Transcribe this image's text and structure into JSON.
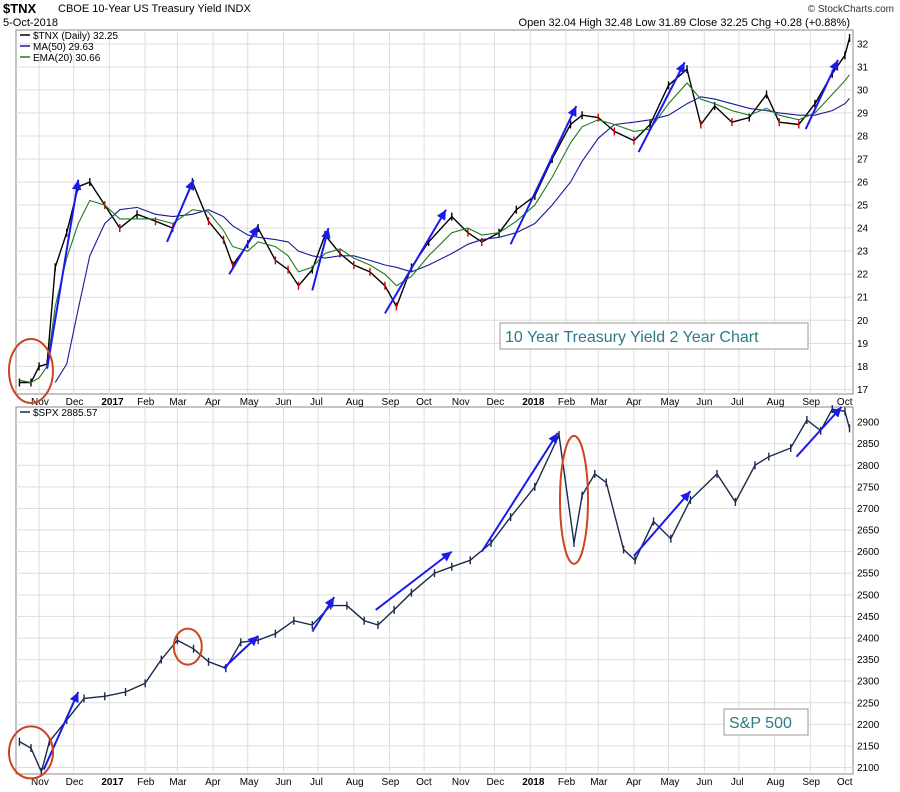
{
  "header": {
    "symbol": "$TNX",
    "description": "CBOE 10-Year US Treasury Yield INDX",
    "date": "5-Oct-2018",
    "quote": "Open 32.04  High 32.48  Low 31.89  Close 32.25  Chg +0.28 (+0.88%)",
    "brand": "© StockCharts.com"
  },
  "colors": {
    "price_bar_up": "#000000",
    "price_bar_down": "#cc0000",
    "ma50": "#1a1a9a",
    "ema20": "#1f7a1f",
    "arrow": "#1a1aee",
    "circle": "#cc4422",
    "spx_line": "#1a2a4a",
    "annotation_text": "#2a7a87"
  },
  "x_axis_labels": [
    {
      "label": "Nov",
      "bold": false
    },
    {
      "label": "Dec",
      "bold": false
    },
    {
      "label": "2017",
      "bold": true
    },
    {
      "label": "Feb",
      "bold": false
    },
    {
      "label": "Mar",
      "bold": false
    },
    {
      "label": "Apr",
      "bold": false
    },
    {
      "label": "May",
      "bold": false
    },
    {
      "label": "Jun",
      "bold": false
    },
    {
      "label": "Jul",
      "bold": false
    },
    {
      "label": "Aug",
      "bold": false
    },
    {
      "label": "Sep",
      "bold": false
    },
    {
      "label": "Oct",
      "bold": false
    },
    {
      "label": "Nov",
      "bold": false
    },
    {
      "label": "Dec",
      "bold": false
    },
    {
      "label": "2018",
      "bold": true
    },
    {
      "label": "Feb",
      "bold": false
    },
    {
      "label": "Mar",
      "bold": false
    },
    {
      "label": "Apr",
      "bold": false
    },
    {
      "label": "May",
      "bold": false
    },
    {
      "label": "Jun",
      "bold": false
    },
    {
      "label": "Jul",
      "bold": false
    },
    {
      "label": "Aug",
      "bold": false
    },
    {
      "label": "Sep",
      "bold": false
    },
    {
      "label": "Oct",
      "bold": false
    }
  ],
  "chart_data": [
    {
      "type": "line",
      "title": "$TNX (Daily) 32.25",
      "legend": [
        "$TNX (Daily) 32.25",
        "MA(50) 29.63",
        "EMA(20) 30.66"
      ],
      "legend_placement": "top-left",
      "annotation": "10 Year Treasury Yield 2 Year Chart",
      "ylim": [
        16.8,
        32.6
      ],
      "yticks": [
        17,
        18,
        19,
        20,
        21,
        22,
        23,
        24,
        25,
        26,
        27,
        28,
        29,
        30,
        31,
        32
      ],
      "grid": true,
      "x": [
        "2016-10-15",
        "2016-10-25",
        "2016-11-01",
        "2016-11-08",
        "2016-11-15",
        "2016-11-25",
        "2016-12-05",
        "2016-12-15",
        "2016-12-28",
        "2017-01-10",
        "2017-01-25",
        "2017-02-10",
        "2017-02-25",
        "2017-03-14",
        "2017-03-28",
        "2017-04-10",
        "2017-04-18",
        "2017-05-01",
        "2017-05-10",
        "2017-05-25",
        "2017-06-05",
        "2017-06-14",
        "2017-06-26",
        "2017-07-07",
        "2017-07-20",
        "2017-08-01",
        "2017-08-15",
        "2017-08-28",
        "2017-09-07",
        "2017-09-20",
        "2017-10-05",
        "2017-10-25",
        "2017-11-08",
        "2017-11-20",
        "2017-12-05",
        "2017-12-20",
        "2018-01-05",
        "2018-01-20",
        "2018-02-05",
        "2018-02-15",
        "2018-03-01",
        "2018-03-15",
        "2018-04-01",
        "2018-04-15",
        "2018-05-01",
        "2018-05-17",
        "2018-05-29",
        "2018-06-10",
        "2018-06-25",
        "2018-07-10",
        "2018-07-25",
        "2018-08-05",
        "2018-08-22",
        "2018-09-05",
        "2018-09-20",
        "2018-10-01",
        "2018-10-05"
      ],
      "series": [
        {
          "name": "$TNX (Daily) 32.25",
          "values": [
            17.3,
            17.3,
            18.0,
            18.1,
            22.3,
            23.8,
            25.8,
            26.0,
            25.0,
            24.0,
            24.6,
            24.3,
            24.0,
            26.0,
            24.3,
            23.5,
            22.4,
            23.3,
            24.0,
            22.6,
            22.2,
            21.5,
            22.2,
            23.7,
            22.9,
            22.4,
            22.1,
            21.5,
            20.6,
            22.3,
            23.4,
            24.5,
            23.8,
            23.4,
            23.8,
            24.8,
            25.4,
            27.0,
            28.5,
            28.9,
            28.8,
            28.2,
            27.8,
            28.5,
            30.2,
            30.9,
            28.5,
            29.3,
            28.6,
            28.8,
            29.8,
            28.6,
            28.5,
            29.4,
            30.7,
            31.5,
            32.25
          ]
        },
        {
          "name": "MA(50) 29.63",
          "values": [
            null,
            null,
            null,
            null,
            17.3,
            18.1,
            20.5,
            22.8,
            24.2,
            24.8,
            24.9,
            24.6,
            24.5,
            24.6,
            24.8,
            24.5,
            24.1,
            23.7,
            23.6,
            23.5,
            23.4,
            23.0,
            22.8,
            22.7,
            22.8,
            22.8,
            22.6,
            22.4,
            22.3,
            22.1,
            22.4,
            22.9,
            23.3,
            23.5,
            23.6,
            23.8,
            24.2,
            25.0,
            26.0,
            26.9,
            27.9,
            28.5,
            28.6,
            28.7,
            28.9,
            29.4,
            29.7,
            29.6,
            29.4,
            29.2,
            29.1,
            29.0,
            28.9,
            28.9,
            29.1,
            29.4,
            29.63
          ]
        },
        {
          "name": "EMA(20) 30.66",
          "values": [
            17.4,
            17.3,
            17.5,
            18.0,
            20.6,
            22.7,
            24.2,
            25.2,
            25.0,
            24.4,
            24.4,
            24.4,
            24.2,
            24.8,
            24.7,
            23.9,
            23.2,
            23.0,
            23.4,
            23.2,
            22.8,
            22.1,
            22.3,
            22.9,
            23.1,
            22.7,
            22.4,
            22.0,
            21.5,
            21.9,
            22.8,
            23.8,
            24.0,
            23.7,
            23.8,
            24.3,
            25.0,
            26.2,
            27.7,
            28.4,
            28.7,
            28.5,
            28.2,
            28.3,
            29.4,
            30.3,
            29.6,
            29.4,
            29.1,
            28.9,
            29.2,
            28.9,
            28.7,
            29.0,
            29.8,
            30.4,
            30.66
          ]
        }
      ]
    },
    {
      "type": "line",
      "title": "$SPX 2885.57",
      "legend": [
        "$SPX 2885.57"
      ],
      "legend_placement": "top-left",
      "annotation": "S&P 500",
      "ylim": [
        2085,
        2935
      ],
      "yticks": [
        2100,
        2150,
        2200,
        2250,
        2300,
        2350,
        2400,
        2450,
        2500,
        2550,
        2600,
        2650,
        2700,
        2750,
        2800,
        2850,
        2900
      ],
      "grid": true,
      "x": [
        "2016-10-15",
        "2016-10-25",
        "2016-11-03",
        "2016-11-10",
        "2016-11-25",
        "2016-12-10",
        "2016-12-28",
        "2017-01-15",
        "2017-02-01",
        "2017-02-15",
        "2017-03-01",
        "2017-03-15",
        "2017-03-28",
        "2017-04-12",
        "2017-04-25",
        "2017-05-10",
        "2017-05-25",
        "2017-06-10",
        "2017-06-26",
        "2017-07-12",
        "2017-07-26",
        "2017-08-10",
        "2017-08-22",
        "2017-09-05",
        "2017-09-20",
        "2017-10-10",
        "2017-10-25",
        "2017-11-10",
        "2017-11-28",
        "2017-12-15",
        "2018-01-05",
        "2018-01-26",
        "2018-02-08",
        "2018-02-15",
        "2018-02-26",
        "2018-03-08",
        "2018-03-23",
        "2018-04-02",
        "2018-04-18",
        "2018-05-03",
        "2018-05-20",
        "2018-06-12",
        "2018-06-28",
        "2018-07-15",
        "2018-07-27",
        "2018-08-15",
        "2018-08-29",
        "2018-09-10",
        "2018-09-20",
        "2018-10-01",
        "2018-10-05"
      ],
      "series": [
        {
          "name": "$SPX 2885.57",
          "values": [
            2160,
            2145,
            2090,
            2160,
            2210,
            2260,
            2265,
            2275,
            2295,
            2350,
            2395,
            2375,
            2345,
            2330,
            2390,
            2395,
            2410,
            2440,
            2430,
            2475,
            2475,
            2440,
            2430,
            2465,
            2505,
            2550,
            2565,
            2580,
            2620,
            2680,
            2750,
            2870,
            2620,
            2730,
            2780,
            2760,
            2605,
            2580,
            2670,
            2630,
            2720,
            2780,
            2715,
            2800,
            2820,
            2840,
            2905,
            2880,
            2930,
            2925,
            2885.57
          ]
        }
      ]
    }
  ]
}
